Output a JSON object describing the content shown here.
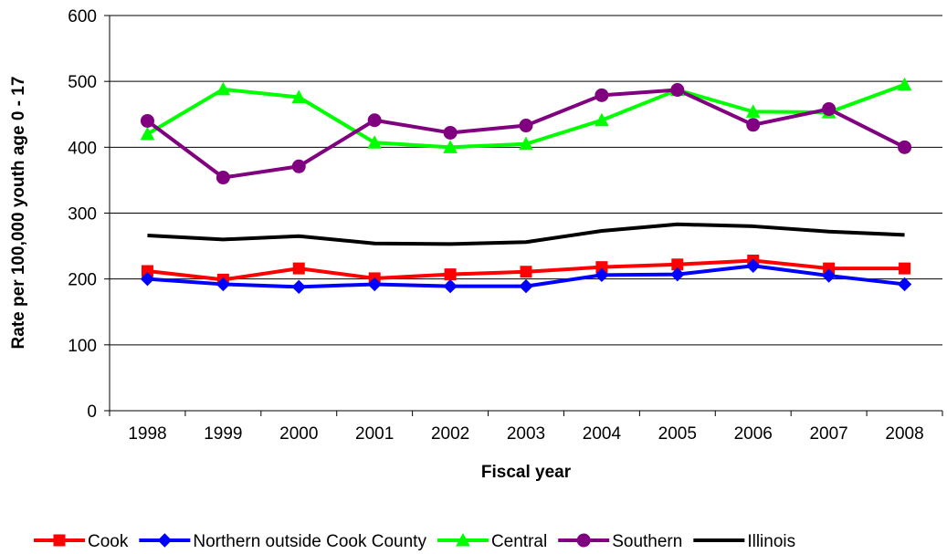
{
  "chart_data": {
    "type": "line",
    "title": "",
    "xlabel": "Fiscal year",
    "ylabel": "Rate per 100,000 youth age 0 - 17",
    "ylim": [
      0,
      600
    ],
    "yticks": [
      0,
      100,
      200,
      300,
      400,
      500,
      600
    ],
    "grid": "horizontal",
    "legend_position": "bottom",
    "categories": [
      "1998",
      "1999",
      "2000",
      "2001",
      "2002",
      "2003",
      "2004",
      "2005",
      "2006",
      "2007",
      "2008"
    ],
    "series": [
      {
        "name": "Cook",
        "color": "#FF0000",
        "marker": "square",
        "values": [
          212,
          199,
          216,
          201,
          207,
          211,
          218,
          222,
          228,
          216,
          216
        ]
      },
      {
        "name": "Northern outside Cook County",
        "color": "#0000FF",
        "marker": "diamond",
        "values": [
          200,
          192,
          188,
          192,
          189,
          189,
          206,
          207,
          220,
          205,
          192
        ]
      },
      {
        "name": "Central",
        "color": "#00FF00",
        "marker": "triangle",
        "values": [
          420,
          488,
          476,
          407,
          400,
          405,
          441,
          487,
          454,
          453,
          495
        ]
      },
      {
        "name": "Southern",
        "color": "#800080",
        "marker": "circle",
        "values": [
          440,
          354,
          371,
          441,
          422,
          433,
          479,
          487,
          434,
          458,
          400
        ]
      },
      {
        "name": "Illinois",
        "color": "#000000",
        "marker": "none",
        "values": [
          266,
          260,
          265,
          254,
          253,
          256,
          273,
          283,
          280,
          272,
          267
        ]
      }
    ]
  }
}
